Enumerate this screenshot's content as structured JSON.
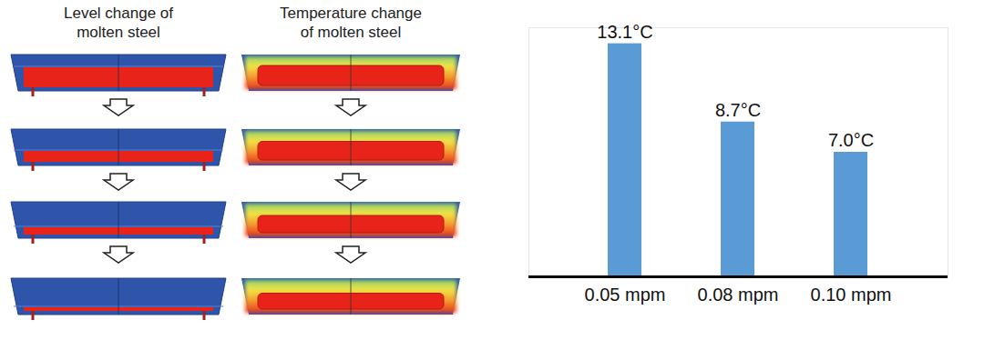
{
  "panels": {
    "columns": [
      {
        "title_lines": [
          "Level change of",
          "molten steel"
        ]
      },
      {
        "title_lines": [
          "Temperature change",
          "of molten steel"
        ]
      }
    ]
  },
  "chart_data": {
    "type": "bar",
    "categories": [
      "0.05 mpm",
      "0.08 mpm",
      "0.10 mpm"
    ],
    "values": [
      13.1,
      8.7,
      7.0
    ],
    "value_labels": [
      "13.1°C",
      "8.7°C",
      "7.0°C"
    ],
    "data_labels": true,
    "color": "#5b9bd5",
    "ylim": [
      0,
      14
    ],
    "tick_labels": "x",
    "grid": false
  }
}
